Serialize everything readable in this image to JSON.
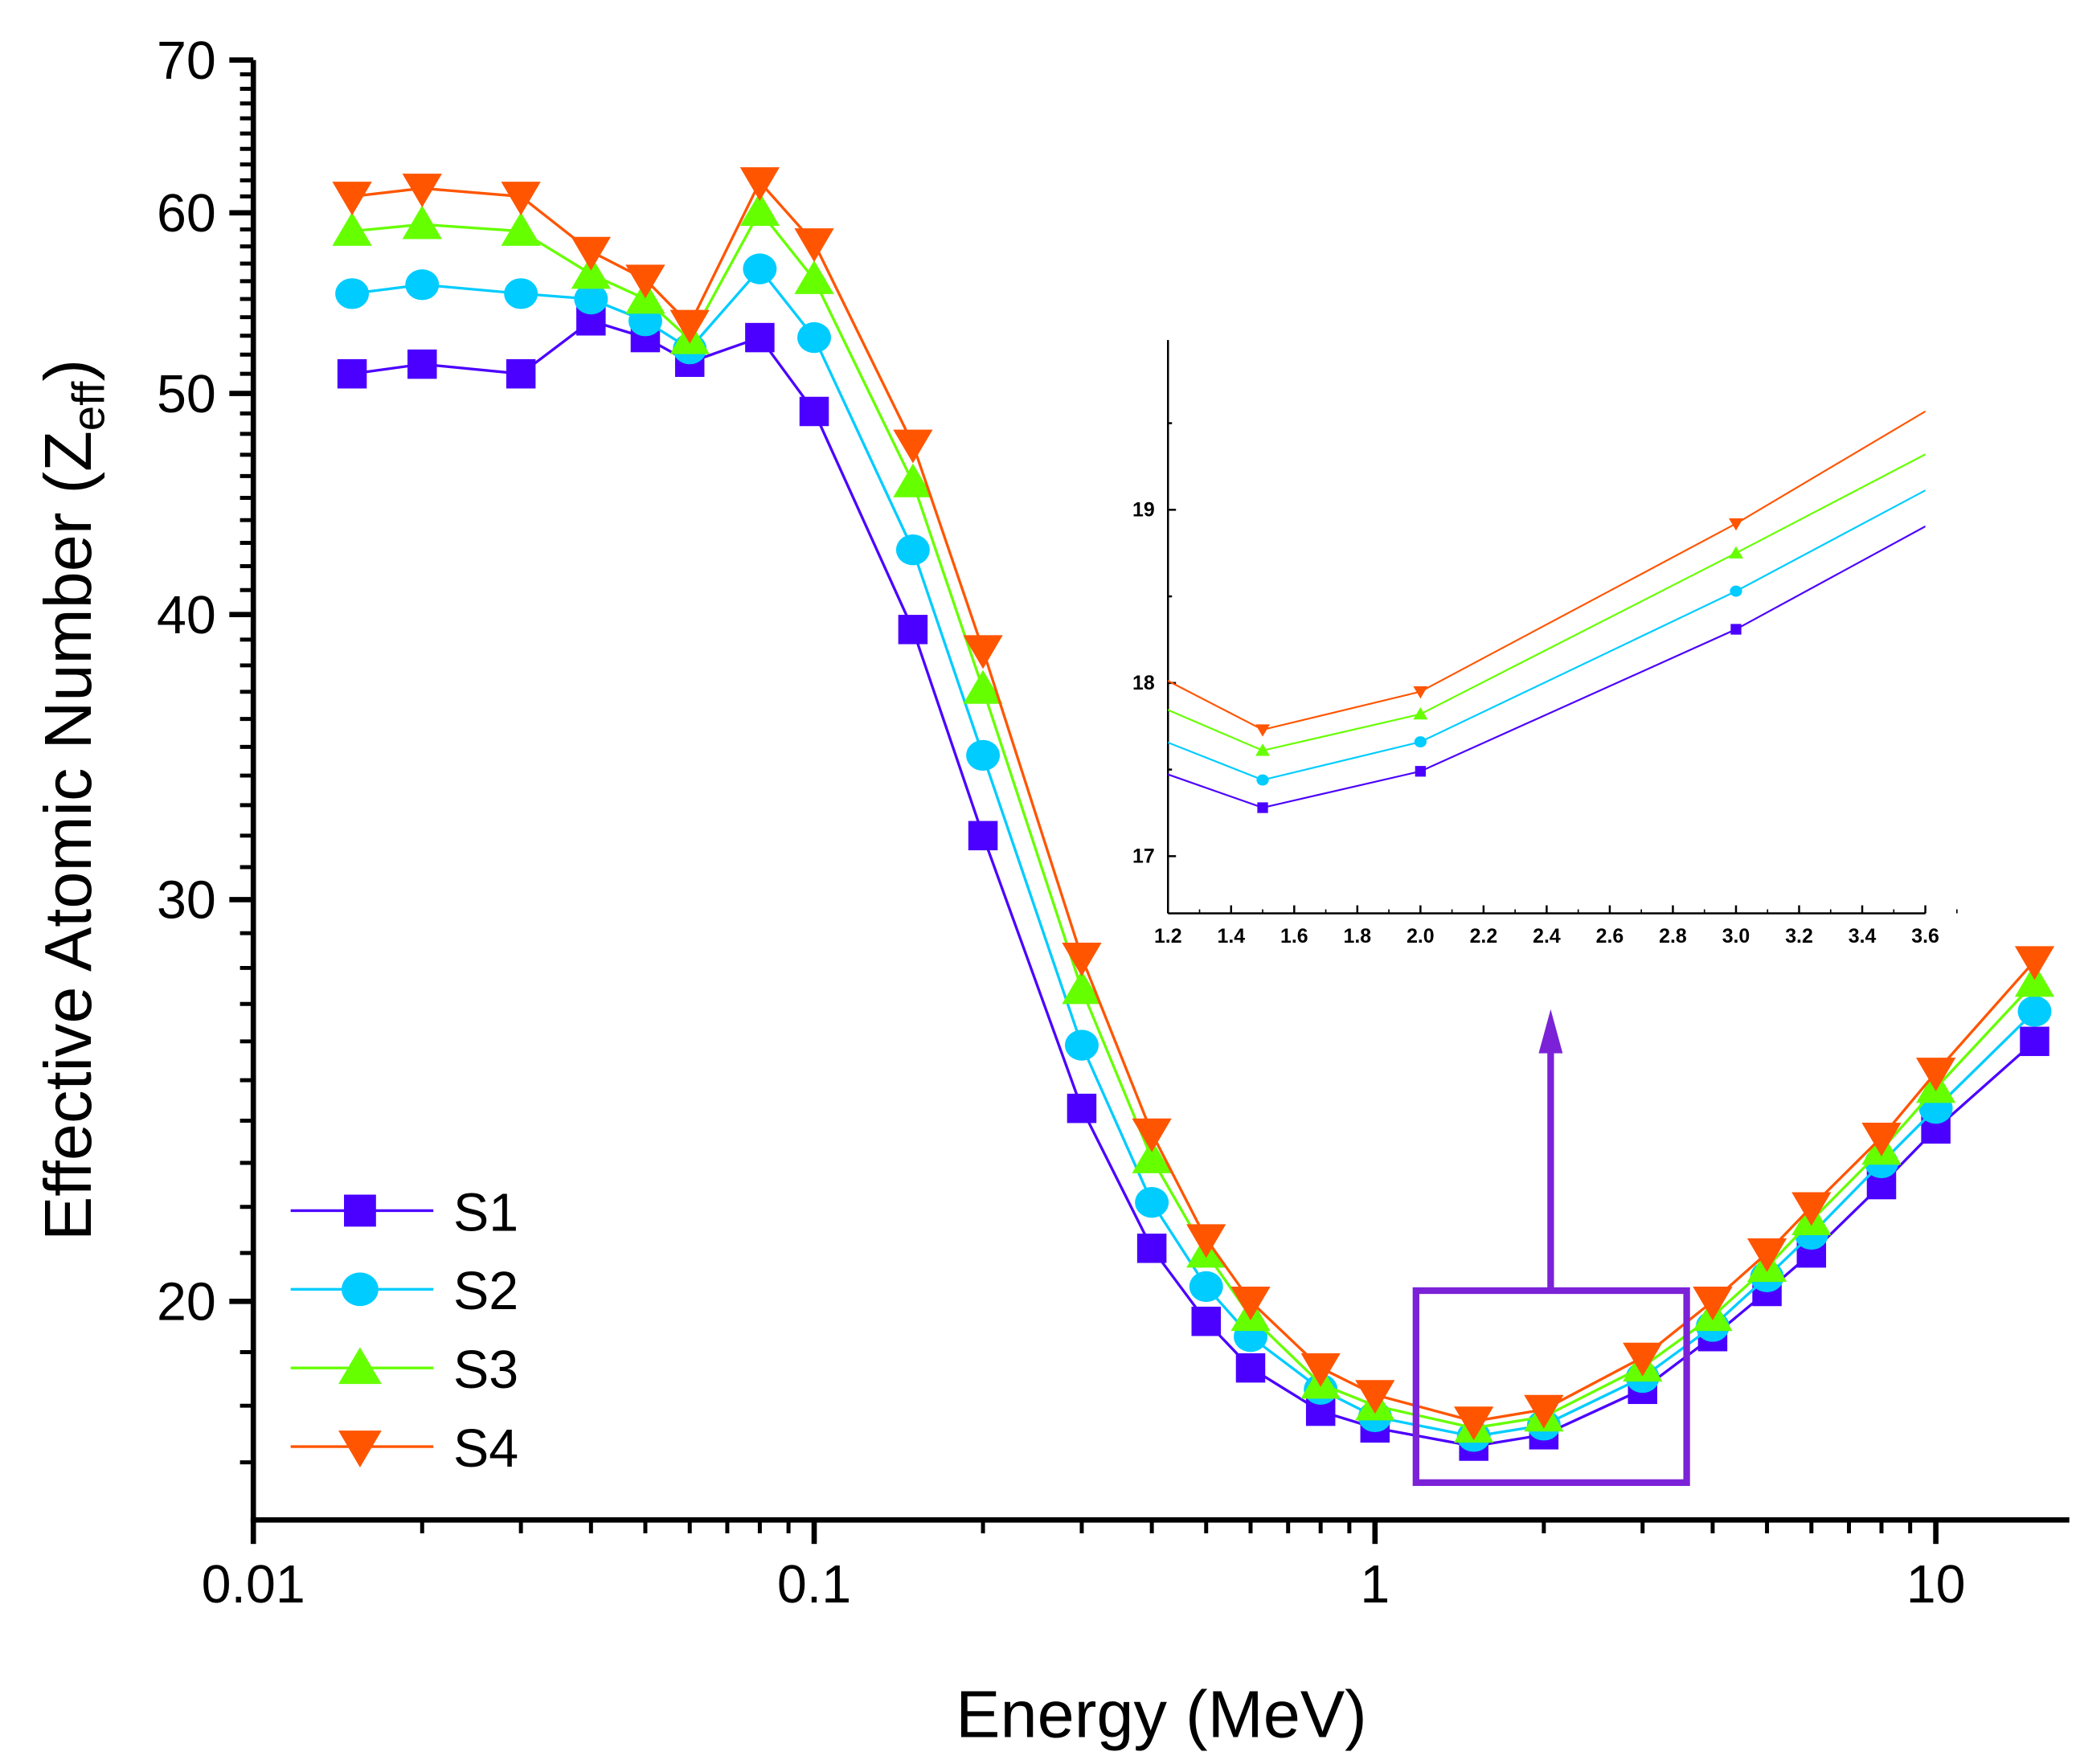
{
  "chart_data": {
    "type": "line",
    "xlabel": "Energy (MeV)",
    "ylabel_main": "Effective Atomic Number (Z",
    "ylabel_sub": "eff",
    "ylabel_close": ")",
    "xscale": "log",
    "yscale": "log",
    "xlim": [
      0.01,
      17.3
    ],
    "ylim": [
      16.04,
      70
    ],
    "x_ticks": [
      0.01,
      0.1,
      1,
      10
    ],
    "x_tick_labels": [
      "0.01",
      "0.1",
      "1",
      "10"
    ],
    "y_ticks": [
      20,
      30,
      40,
      50,
      60,
      70
    ],
    "y_tick_labels": [
      "20",
      "30",
      "40",
      "50",
      "60",
      "70"
    ],
    "grid": false,
    "legend_position": "bottom-left",
    "x": [
      0.015,
      0.02,
      0.03,
      0.04,
      0.05,
      0.06,
      0.08,
      0.1,
      0.15,
      0.2,
      0.3,
      0.4,
      0.5,
      0.6,
      0.8,
      1,
      1.5,
      2,
      3,
      4,
      5,
      6,
      8,
      10,
      15
    ],
    "series": [
      {
        "name": "S1",
        "color": "#4B00FF",
        "marker": "square",
        "values": [
          51.0,
          51.5,
          51.0,
          53.8,
          52.9,
          51.6,
          52.9,
          49.1,
          39.4,
          32.0,
          24.3,
          21.1,
          19.6,
          18.7,
          17.9,
          17.6,
          17.28,
          17.48,
          18.3,
          19.3,
          20.2,
          21.0,
          22.5,
          23.8,
          26.0
        ]
      },
      {
        "name": "S2",
        "color": "#00CCFF",
        "marker": "circle",
        "values": [
          55.3,
          55.8,
          55.3,
          55.0,
          53.8,
          52.3,
          56.7,
          52.9,
          42.7,
          34.7,
          25.9,
          22.1,
          20.3,
          19.3,
          18.3,
          17.8,
          17.45,
          17.65,
          18.52,
          19.5,
          20.5,
          21.4,
          23.0,
          24.3,
          26.8
        ]
      },
      {
        "name": "S3",
        "color": "#66FF00",
        "marker": "triangle-up",
        "values": [
          58.9,
          59.3,
          58.9,
          56.4,
          55.0,
          52.8,
          60.1,
          56.1,
          45.7,
          37.1,
          27.4,
          23.1,
          21.0,
          19.7,
          18.4,
          18.0,
          17.6,
          17.8,
          18.72,
          19.7,
          20.7,
          21.7,
          23.3,
          24.8,
          27.6
        ]
      },
      {
        "name": "S4",
        "color": "#FF5500",
        "marker": "triangle-down",
        "values": [
          61.0,
          61.5,
          61.0,
          57.7,
          56.1,
          53.6,
          61.9,
          58.2,
          47.5,
          38.6,
          28.3,
          23.7,
          21.3,
          20.0,
          18.7,
          18.2,
          17.72,
          17.93,
          18.9,
          20.0,
          21.0,
          22.0,
          23.6,
          25.2,
          28.2
        ]
      }
    ],
    "annotation": {
      "type": "zoom-box-with-arrow",
      "color": "#7B22D8",
      "x_range": [
        1.2,
        3.6
      ]
    },
    "inset": {
      "type": "line",
      "xlim": [
        1.2,
        3.6
      ],
      "ylim": [
        16.67,
        19.98
      ],
      "x_ticks": [
        1.2,
        1.4,
        1.6,
        1.8,
        2.0,
        2.2,
        2.4,
        2.6,
        2.8,
        3.0,
        3.2,
        3.4,
        3.6
      ],
      "x_tick_labels": [
        "1.2",
        "1.4",
        "1.6",
        "1.8",
        "2.0",
        "2.2",
        "2.4",
        "2.6",
        "2.8",
        "3.0",
        "3.2",
        "3.4",
        "3.6"
      ],
      "y_ticks": [
        17,
        18,
        19
      ],
      "y_tick_labels": [
        "17",
        "18",
        "19"
      ],
      "x": [
        1,
        1.5,
        2,
        3,
        4
      ],
      "series": [
        {
          "name": "S1",
          "values": [
            17.6,
            17.28,
            17.49,
            18.31,
            19.3
          ]
        },
        {
          "name": "S2",
          "values": [
            17.8,
            17.44,
            17.66,
            18.53,
            19.5
          ]
        },
        {
          "name": "S3",
          "values": [
            18.0,
            17.61,
            17.82,
            18.75,
            19.7
          ]
        },
        {
          "name": "S4",
          "values": [
            18.2,
            17.73,
            17.95,
            18.92,
            20.0
          ]
        }
      ]
    }
  }
}
